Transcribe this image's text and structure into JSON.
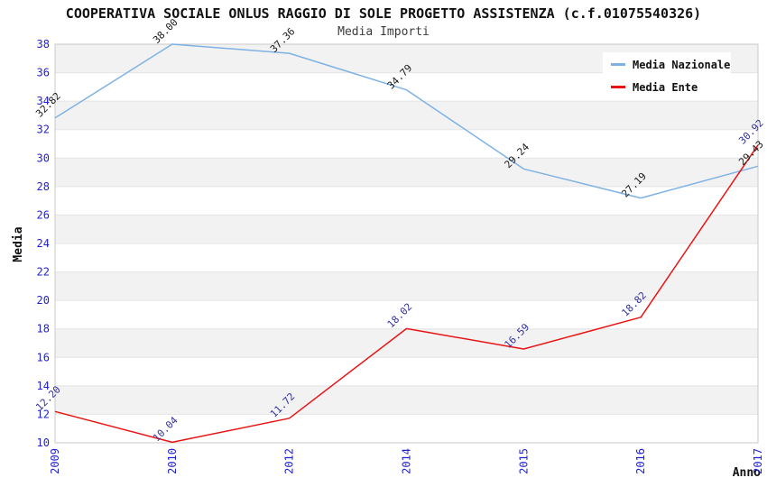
{
  "chart_data": {
    "type": "line",
    "title": "COOPERATIVA SOCIALE ONLUS RAGGIO DI SOLE PROGETTO ASSISTENZA (c.f.01075540326)",
    "subtitle": "Media Importi",
    "xlabel": "Anno",
    "ylabel": "Media",
    "categories": [
      "2009",
      "2010",
      "2012",
      "2014",
      "2015",
      "2016",
      "2017"
    ],
    "series": [
      {
        "name": "Media Nazionale",
        "color": "#7EB2E4",
        "label_color": "#1a1a1a",
        "values": [
          32.82,
          38.0,
          37.36,
          34.79,
          29.24,
          27.19,
          29.43
        ]
      },
      {
        "name": "Media Ente",
        "color": "#E81414",
        "label_color": "#31319B",
        "values": [
          12.2,
          10.04,
          11.72,
          18.02,
          16.59,
          18.82,
          30.92
        ]
      }
    ],
    "ylim": [
      10,
      38
    ],
    "ytick_step": 2,
    "grid": "horizontal-bands",
    "legend_position": "top-right",
    "colors": {
      "band": "#f2f2f2",
      "band_alt": "#ffffff",
      "gridline": "#e4e4e4",
      "plot_border": "#c9c9c9",
      "tick_label": "#2121d6",
      "legend_bg": "#ffffff"
    }
  }
}
